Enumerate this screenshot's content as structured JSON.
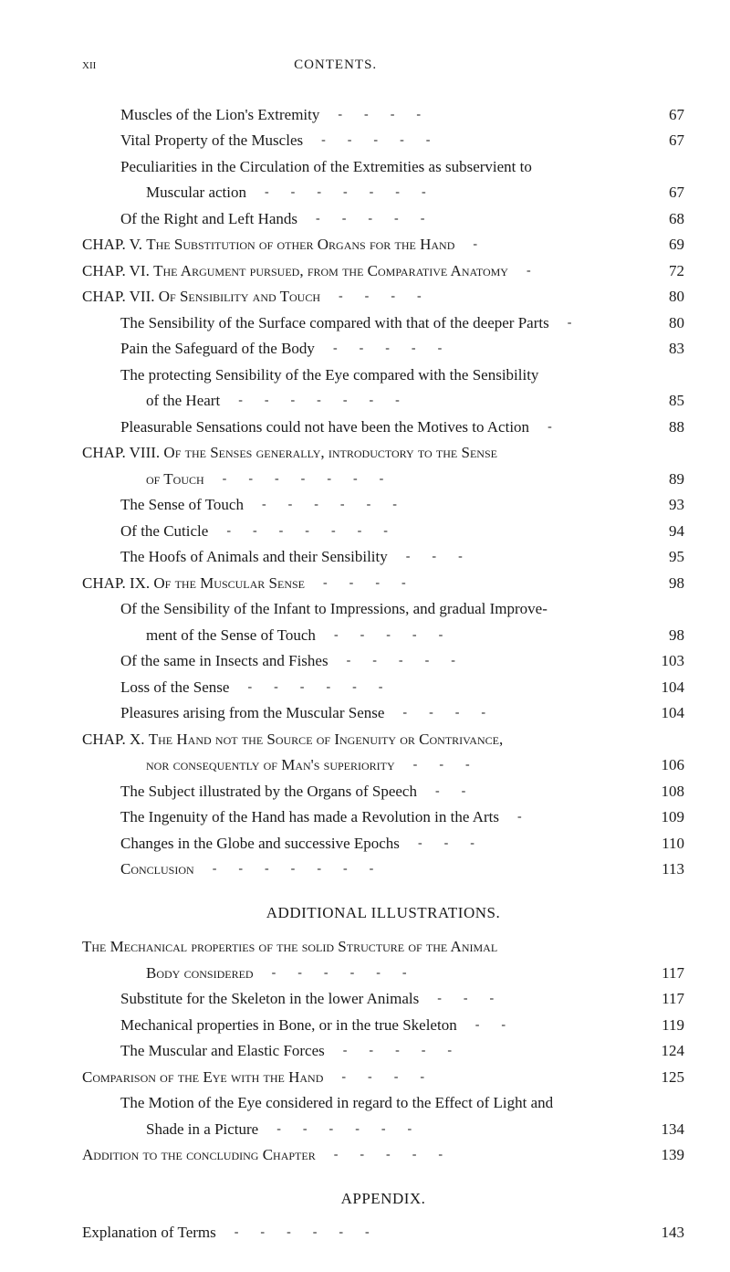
{
  "header": {
    "page_num": "xii",
    "title": "CONTENTS."
  },
  "entries": [
    {
      "text": "Muscles of the Lion's Extremity",
      "page": "67",
      "indent": 1,
      "dashes": "----"
    },
    {
      "text": "Vital Property of the Muscles",
      "page": "67",
      "indent": 1,
      "dashes": "-----"
    },
    {
      "text": "Peculiarities in the Circulation of the Extremities as subservient to",
      "page": "",
      "indent": 1,
      "dashes": ""
    },
    {
      "text": "Muscular action",
      "page": "67",
      "indent": 2,
      "dashes": "-------"
    },
    {
      "text": "Of the Right and Left Hands",
      "page": "68",
      "indent": 1,
      "dashes": "-----"
    },
    {
      "text": "CHAP. V.   <sc>The Substitution of other Organs for the Hand</sc>",
      "page": "69",
      "indent": 0,
      "dashes": "-"
    },
    {
      "text": "CHAP. VI.   <sc>The Argument pursued, from the Comparative Anatomy</sc>",
      "page": "72",
      "indent": 0,
      "dashes": ""
    },
    {
      "text": "CHAP. VII.   <sc>Of Sensibility and Touch</sc>",
      "page": "80",
      "indent": 0,
      "dashes": "----"
    },
    {
      "text": "The Sensibility of the Surface compared with that of the deeper Parts",
      "page": "80",
      "indent": 1,
      "dashes": ""
    },
    {
      "text": "Pain the Safeguard of the Body",
      "page": "83",
      "indent": 1,
      "dashes": "-----"
    },
    {
      "text": "The protecting Sensibility of the Eye compared with the Sensibility",
      "page": "",
      "indent": 1,
      "dashes": ""
    },
    {
      "text": "of the Heart",
      "page": "85",
      "indent": 2,
      "dashes": "-------"
    },
    {
      "text": "Pleasurable Sensations could not have been the Motives to Action",
      "page": "88",
      "indent": 1,
      "dashes": ""
    },
    {
      "text": "CHAP. VIII. <sc>Of the Senses generally, introductory to the Sense</sc>",
      "page": "",
      "indent": 0,
      "dashes": ""
    },
    {
      "text": "<sc>of Touch</sc>",
      "page": "89",
      "indent": 2,
      "dashes": "-------"
    },
    {
      "text": "The Sense of Touch",
      "page": "93",
      "indent": 1,
      "dashes": "------"
    },
    {
      "text": "Of the Cuticle",
      "page": "94",
      "indent": 1,
      "dashes": "-------"
    },
    {
      "text": "The Hoofs of Animals and their Sensibility",
      "page": "95",
      "indent": 1,
      "dashes": "---"
    },
    {
      "text": "CHAP. IX.   <sc>Of the Muscular Sense</sc>",
      "page": "98",
      "indent": 0,
      "dashes": "----"
    },
    {
      "text": "Of the Sensibility of the Infant to Impressions, and gradual Improve-",
      "page": "",
      "indent": 1,
      "dashes": ""
    },
    {
      "text": "ment of the Sense of Touch",
      "page": "98",
      "indent": 2,
      "dashes": "-----"
    },
    {
      "text": "Of the same in Insects and Fishes",
      "page": "103",
      "indent": 1,
      "dashes": "-----"
    },
    {
      "text": "Loss of the Sense",
      "page": "104",
      "indent": 1,
      "dashes": "------"
    },
    {
      "text": "Pleasures arising from the Muscular Sense",
      "page": "104",
      "indent": 1,
      "dashes": "----"
    },
    {
      "text": "CHAP. X.   <sc>The Hand not the Source of Ingenuity or Contrivance,</sc>",
      "page": "",
      "indent": 0,
      "dashes": ""
    },
    {
      "text": "<sc>nor consequently of Man's superiority</sc>",
      "page": "106",
      "indent": 2,
      "dashes": "---"
    },
    {
      "text": "The Subject illustrated by the Organs of Speech",
      "page": "108",
      "indent": 1,
      "dashes": "--"
    },
    {
      "text": "The Ingenuity of the Hand has made a Revolution in the Arts",
      "page": "109",
      "indent": 1,
      "dashes": "-"
    },
    {
      "text": "Changes in the Globe and successive Epochs",
      "page": "110",
      "indent": 1,
      "dashes": "---"
    },
    {
      "text": "<sc>Conclusion</sc>",
      "page": "113",
      "indent": 1,
      "dashes": "-------"
    }
  ],
  "section_heading": "ADDITIONAL ILLUSTRATIONS.",
  "entries2": [
    {
      "text": "<sc>The Mechanical properties of the solid Structure of the Animal</sc>",
      "page": "",
      "indent": 0,
      "dashes": ""
    },
    {
      "text": "<sc>Body considered</sc>",
      "page": "117",
      "indent": 2,
      "dashes": "------"
    },
    {
      "text": "Substitute for the Skeleton in the lower Animals",
      "page": "117",
      "indent": 1,
      "dashes": "---"
    },
    {
      "text": "Mechanical properties in Bone, or in the true Skeleton",
      "page": "119",
      "indent": 1,
      "dashes": "--"
    },
    {
      "text": "The Muscular and Elastic Forces",
      "page": "124",
      "indent": 1,
      "dashes": "-----"
    },
    {
      "text": "<sc>Comparison of the Eye with the Hand</sc>",
      "page": "125",
      "indent": 0,
      "dashes": "----"
    },
    {
      "text": "The Motion of the Eye considered in regard to the Effect of Light and",
      "page": "",
      "indent": 1,
      "dashes": ""
    },
    {
      "text": "Shade in a Picture",
      "page": "134",
      "indent": 2,
      "dashes": "------"
    },
    {
      "text": "<sc>Addition to the concluding Chapter</sc>",
      "page": "139",
      "indent": 0,
      "dashes": "-----"
    }
  ],
  "appendix_heading": "APPENDIX.",
  "entries3": [
    {
      "text": "Explanation of Terms",
      "page": "143",
      "indent": 0,
      "dashes": "------"
    }
  ]
}
